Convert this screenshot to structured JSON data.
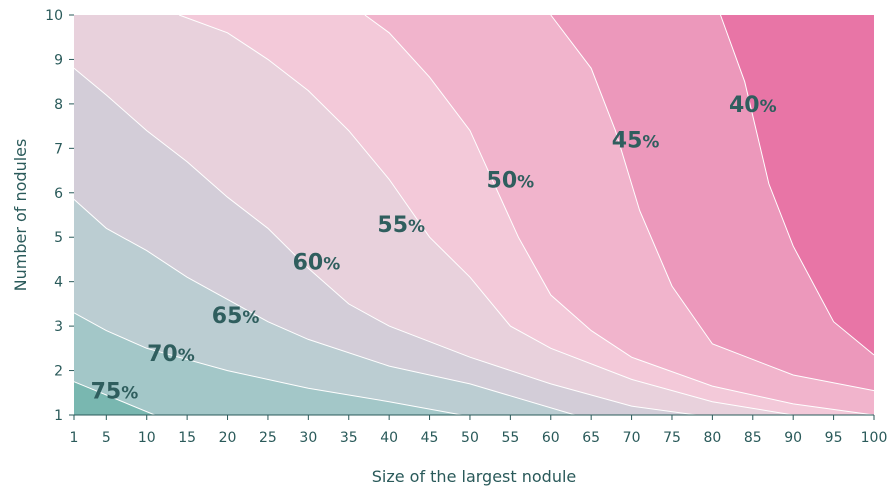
{
  "chart_data": {
    "type": "contour",
    "title": "",
    "xlabel": "Size of the largest nodule",
    "ylabel": "Number of nodules",
    "xlim": [
      1,
      100
    ],
    "ylim": [
      1,
      10
    ],
    "x_ticks": [
      1,
      5,
      10,
      15,
      20,
      25,
      30,
      35,
      40,
      45,
      50,
      55,
      60,
      65,
      70,
      75,
      80,
      85,
      90,
      95,
      100
    ],
    "y_ticks": [
      1,
      2,
      3,
      4,
      5,
      6,
      7,
      8,
      9,
      10
    ],
    "grid": false,
    "legend": "none",
    "contours": [
      {
        "label": "75%",
        "value": 75,
        "line": [
          [
            1,
            1.75
          ],
          [
            11,
            1.0
          ]
        ],
        "label_pos": [
          6,
          1.55
        ]
      },
      {
        "label": "70%",
        "value": 70,
        "line": [
          [
            1,
            3.3
          ],
          [
            5,
            2.9
          ],
          [
            10,
            2.5
          ],
          [
            20,
            2.0
          ],
          [
            30,
            1.6
          ],
          [
            40,
            1.3
          ],
          [
            49,
            1.0
          ]
        ],
        "label_pos": [
          13,
          2.4
        ]
      },
      {
        "label": "65%",
        "value": 65,
        "line": [
          [
            1,
            5.85
          ],
          [
            5,
            5.2
          ],
          [
            10,
            4.7
          ],
          [
            15,
            4.1
          ],
          [
            20,
            3.6
          ],
          [
            25,
            3.1
          ],
          [
            30,
            2.7
          ],
          [
            40,
            2.1
          ],
          [
            50,
            1.7
          ],
          [
            63,
            1.0
          ]
        ],
        "label_pos": [
          21,
          3.25
        ]
      },
      {
        "label": "60%",
        "value": 60,
        "line": [
          [
            1,
            8.8
          ],
          [
            5,
            8.2
          ],
          [
            10,
            7.4
          ],
          [
            15,
            6.7
          ],
          [
            20,
            5.9
          ],
          [
            25,
            5.2
          ],
          [
            30,
            4.3
          ],
          [
            35,
            3.5
          ],
          [
            40,
            3.0
          ],
          [
            50,
            2.3
          ],
          [
            60,
            1.7
          ],
          [
            70,
            1.2
          ],
          [
            78,
            1.0
          ]
        ],
        "label_pos": [
          31,
          4.45
        ]
      },
      {
        "label": "55%",
        "value": 55,
        "line": [
          [
            14,
            10.0
          ],
          [
            20,
            9.6
          ],
          [
            25,
            9.0
          ],
          [
            30,
            8.3
          ],
          [
            35,
            7.4
          ],
          [
            40,
            6.3
          ],
          [
            45,
            5.0
          ],
          [
            50,
            4.1
          ],
          [
            55,
            3.0
          ],
          [
            60,
            2.5
          ],
          [
            70,
            1.8
          ],
          [
            80,
            1.3
          ],
          [
            90,
            1.0
          ]
        ],
        "label_pos": [
          41.5,
          5.3
        ]
      },
      {
        "label": "50%",
        "value": 50,
        "line": [
          [
            37,
            10.0
          ],
          [
            40,
            9.6
          ],
          [
            45,
            8.6
          ],
          [
            50,
            7.4
          ],
          [
            53,
            6.2
          ],
          [
            56,
            5.0
          ],
          [
            60,
            3.7
          ],
          [
            65,
            2.9
          ],
          [
            70,
            2.3
          ],
          [
            80,
            1.65
          ],
          [
            90,
            1.25
          ],
          [
            100,
            1.0
          ]
        ],
        "label_pos": [
          55,
          6.3
        ]
      },
      {
        "label": "45%",
        "value": 45,
        "line": [
          [
            60,
            10.0
          ],
          [
            65,
            8.8
          ],
          [
            68,
            7.4
          ],
          [
            71,
            5.6
          ],
          [
            75,
            3.9
          ],
          [
            80,
            2.6
          ],
          [
            90,
            1.9
          ],
          [
            100,
            1.55
          ]
        ],
        "label_pos": [
          70.5,
          7.2
        ]
      },
      {
        "label": "40%",
        "value": 40,
        "line": [
          [
            81,
            10.0
          ],
          [
            84,
            8.5
          ],
          [
            87,
            6.2
          ],
          [
            90,
            4.8
          ],
          [
            95,
            3.1
          ],
          [
            100,
            2.35
          ]
        ],
        "label_pos": [
          85,
          8.0
        ]
      }
    ],
    "band_colors": [
      "#79b7b0",
      "#a3c7c8",
      "#bbcdd2",
      "#d3cdd8",
      "#e8d1dc",
      "#f3c9d9",
      "#f1b4cc",
      "#ec98bb",
      "#e875a6"
    ],
    "contour_line_color": "#ffffff"
  }
}
